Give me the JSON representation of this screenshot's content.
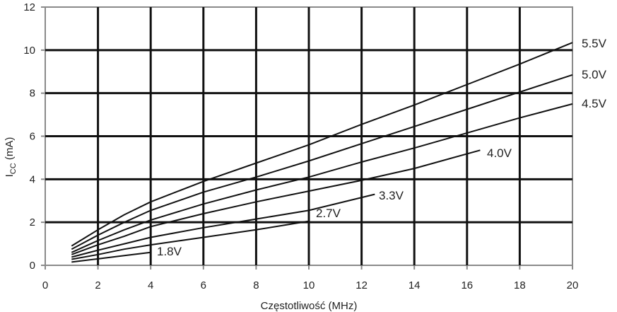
{
  "chart_data": {
    "type": "line",
    "xlabel": "Częstotliwość (MHz)",
    "ylabel": {
      "main": "I",
      "sub": "CC",
      "rest": " (mA)"
    },
    "xlim": [
      0,
      20
    ],
    "ylim": [
      0,
      12
    ],
    "xticks": [
      0,
      2,
      4,
      6,
      8,
      10,
      12,
      14,
      16,
      18,
      20
    ],
    "yticks": [
      0,
      2,
      4,
      6,
      8,
      10,
      12
    ],
    "grid": true,
    "series": [
      {
        "name": "5.5V",
        "x": [
          1,
          2,
          3,
          4,
          6,
          8,
          10,
          12,
          14,
          16,
          18,
          20
        ],
        "y": [
          0.9,
          1.65,
          2.35,
          2.95,
          3.9,
          4.75,
          5.6,
          6.55,
          7.45,
          8.4,
          9.35,
          10.35
        ]
      },
      {
        "name": "5.0V",
        "x": [
          1,
          2,
          3,
          4,
          6,
          8,
          10,
          12,
          14,
          16,
          18,
          20
        ],
        "y": [
          0.75,
          1.4,
          2.0,
          2.55,
          3.4,
          4.1,
          4.85,
          5.65,
          6.45,
          7.25,
          8.05,
          8.85
        ]
      },
      {
        "name": "4.5V",
        "x": [
          1,
          2,
          3,
          4,
          6,
          8,
          10,
          12,
          14,
          16,
          18,
          20
        ],
        "y": [
          0.6,
          1.15,
          1.65,
          2.1,
          2.85,
          3.5,
          4.1,
          4.8,
          5.45,
          6.15,
          6.85,
          7.5
        ]
      },
      {
        "name": "4.0V",
        "x": [
          1,
          2,
          3,
          4,
          6,
          8,
          10,
          12,
          14,
          16.5
        ],
        "y": [
          0.5,
          0.95,
          1.35,
          1.8,
          2.4,
          2.95,
          3.45,
          3.95,
          4.5,
          5.35
        ]
      },
      {
        "name": "3.3V",
        "x": [
          1,
          2,
          3,
          4,
          6,
          8,
          10,
          12.5
        ],
        "y": [
          0.38,
          0.7,
          1.0,
          1.3,
          1.75,
          2.15,
          2.55,
          3.3
        ]
      },
      {
        "name": "2.7V",
        "x": [
          1,
          2,
          3,
          4,
          6,
          8,
          10
        ],
        "y": [
          0.28,
          0.5,
          0.75,
          0.95,
          1.3,
          1.65,
          2.05
        ]
      },
      {
        "name": "1.8V",
        "x": [
          1,
          2,
          3,
          4
        ],
        "y": [
          0.15,
          0.3,
          0.45,
          0.6
        ]
      }
    ]
  }
}
